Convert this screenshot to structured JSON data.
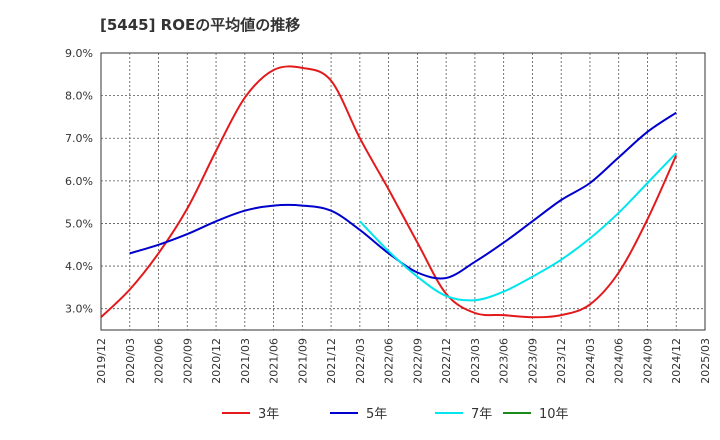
{
  "chart_data": {
    "type": "line",
    "title": "[5445]  ROEの平均値の推移",
    "xlabel": "",
    "ylabel": "",
    "ylim": [
      2.5,
      9.0
    ],
    "yticks": [
      "3.0%",
      "4.0%",
      "5.0%",
      "6.0%",
      "7.0%",
      "8.0%",
      "9.0%"
    ],
    "ytick_values": [
      3.0,
      4.0,
      5.0,
      6.0,
      7.0,
      8.0,
      9.0
    ],
    "x": [
      "2019/12",
      "2020/03",
      "2020/06",
      "2020/09",
      "2020/12",
      "2021/03",
      "2021/06",
      "2021/09",
      "2021/12",
      "2022/03",
      "2022/06",
      "2022/09",
      "2022/12",
      "2023/03",
      "2023/06",
      "2023/09",
      "2023/12",
      "2024/03",
      "2024/06",
      "2024/09",
      "2024/12",
      "2025/03"
    ],
    "grid": true,
    "legend_position": "bottom",
    "series": [
      {
        "name": "3年",
        "color": "#e31a1c",
        "values": [
          2.8,
          3.45,
          4.3,
          5.35,
          6.7,
          7.95,
          8.6,
          8.65,
          8.35,
          7.0,
          5.8,
          4.55,
          3.35,
          2.9,
          2.85,
          2.8,
          2.85,
          3.1,
          3.85,
          5.1,
          6.6,
          null
        ]
      },
      {
        "name": "5年",
        "color": "#0000cc",
        "values": [
          null,
          4.3,
          4.5,
          4.75,
          5.05,
          5.3,
          5.42,
          5.42,
          5.3,
          4.85,
          4.3,
          3.85,
          3.72,
          4.1,
          4.55,
          5.05,
          5.55,
          5.95,
          6.55,
          7.15,
          7.6,
          null
        ]
      },
      {
        "name": "7年",
        "color": "#00e5ee",
        "values": [
          null,
          null,
          null,
          null,
          null,
          null,
          null,
          null,
          null,
          5.05,
          4.35,
          3.75,
          3.3,
          3.2,
          3.4,
          3.75,
          4.15,
          4.65,
          5.25,
          5.95,
          6.65,
          null
        ]
      },
      {
        "name": "10年",
        "color": "#1a8a1a",
        "values": [
          null,
          null,
          null,
          null,
          null,
          null,
          null,
          null,
          null,
          null,
          null,
          null,
          null,
          null,
          null,
          null,
          null,
          null,
          null,
          null,
          null,
          null
        ]
      }
    ]
  }
}
